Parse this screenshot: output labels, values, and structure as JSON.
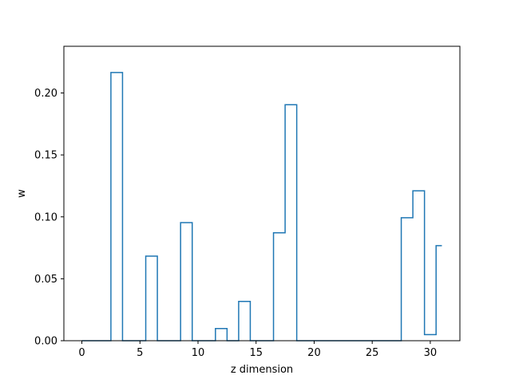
{
  "chart_data": {
    "type": "step",
    "title": "",
    "xlabel": "z dimension",
    "ylabel": "w",
    "xlim": [
      -1.55,
      32.55
    ],
    "ylim": [
      0,
      0.2377
    ],
    "xticks": [
      0,
      5,
      10,
      15,
      20,
      25,
      30
    ],
    "yticks": [
      0.0,
      0.05,
      0.1,
      0.15,
      0.2
    ],
    "xtick_labels": [
      "0",
      "5",
      "10",
      "15",
      "20",
      "25",
      "30"
    ],
    "ytick_labels": [
      "0.00",
      "0.05",
      "0.10",
      "0.15",
      "0.20"
    ],
    "grid": false,
    "line_color": "#1f77b4",
    "step_where": "mid",
    "x": [
      0,
      1,
      2,
      3,
      4,
      5,
      6,
      7,
      8,
      9,
      10,
      11,
      12,
      13,
      14,
      15,
      16,
      17,
      18,
      19,
      20,
      21,
      22,
      23,
      24,
      25,
      26,
      27,
      28,
      29,
      30,
      31
    ],
    "values": [
      0,
      0,
      0,
      0.2165,
      0,
      0,
      0.0683,
      0,
      0,
      0.0953,
      0,
      0,
      0.0098,
      0,
      0.0317,
      0,
      0,
      0.0871,
      0.1905,
      0,
      0,
      0,
      0,
      0,
      0,
      0,
      0,
      0,
      0.0993,
      0.121,
      0.0049,
      0.0767
    ]
  }
}
